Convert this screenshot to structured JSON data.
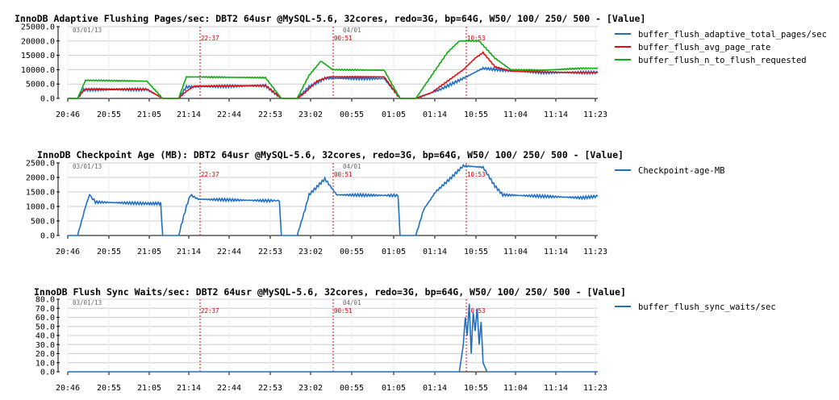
{
  "chart_data": [
    {
      "type": "line",
      "title": "InnoDB Adaptive Flushing Pages/sec: DBT2 64usr @MySQL-5.6, 32cores, redo=3G, bp=64G, W50/ 100/ 250/ 500 - [Value]",
      "ylim": [
        0,
        25000
      ],
      "yticks": [
        "0.0",
        "5000.0",
        "10000.0",
        "15000.0",
        "20000.0",
        "25000.0"
      ],
      "xticks": [
        "20:46",
        "20:55",
        "21:05",
        "21:14",
        "22:44",
        "22:53",
        "23:02",
        "00:55",
        "01:05",
        "01:14",
        "10:55",
        "11:04",
        "11:14",
        "11:23"
      ],
      "date_labels": [
        "03/01/13",
        "04/01"
      ],
      "markers": [
        "22:37",
        "00:51",
        "10:53"
      ],
      "grid": true,
      "legend_position": "right",
      "series": [
        {
          "name": "buffer_flush_adaptive_total_pages/sec",
          "color": "#1f6fc5",
          "points": [
            [
              0,
              0
            ],
            [
              0.25,
              0
            ],
            [
              0.4,
              3000
            ],
            [
              2,
              3100
            ],
            [
              2.4,
              0
            ],
            [
              2.8,
              0
            ],
            [
              3,
              4000
            ],
            [
              5,
              4400
            ],
            [
              5.4,
              0
            ],
            [
              5.8,
              0
            ],
            [
              6.1,
              4000
            ],
            [
              6.5,
              7000
            ],
            [
              8,
              6900
            ],
            [
              8.4,
              0
            ],
            [
              8.8,
              0
            ],
            [
              9.4,
              3000
            ],
            [
              10,
              7000
            ],
            [
              10.5,
              10500
            ],
            [
              11,
              9800
            ],
            [
              12,
              9000
            ],
            [
              13,
              9000
            ],
            [
              13.4,
              9000
            ]
          ]
        },
        {
          "name": "buffer_flush_avg_page_rate",
          "color": "#dd1111",
          "points": [
            [
              0,
              0
            ],
            [
              0.25,
              0
            ],
            [
              0.35,
              2000
            ],
            [
              0.45,
              3200
            ],
            [
              2,
              3200
            ],
            [
              2.4,
              0
            ],
            [
              2.8,
              0
            ],
            [
              3,
              2500
            ],
            [
              3.2,
              4300
            ],
            [
              5,
              4500
            ],
            [
              5.4,
              0
            ],
            [
              5.8,
              0
            ],
            [
              6,
              2000
            ],
            [
              6.3,
              6000
            ],
            [
              6.6,
              7500
            ],
            [
              8,
              7500
            ],
            [
              8.4,
              0
            ],
            [
              8.8,
              0
            ],
            [
              9.2,
              2000
            ],
            [
              9.6,
              6000
            ],
            [
              10,
              10000
            ],
            [
              10.3,
              14000
            ],
            [
              10.5,
              16000
            ],
            [
              10.8,
              11000
            ],
            [
              11.2,
              9500
            ],
            [
              12,
              9200
            ],
            [
              13,
              9000
            ],
            [
              13.4,
              9000
            ]
          ]
        },
        {
          "name": "buffer_flush_n_to_flush_requested",
          "color": "#11aa11",
          "points": [
            [
              0,
              0
            ],
            [
              0.25,
              0
            ],
            [
              0.45,
              6300
            ],
            [
              2,
              6000
            ],
            [
              2.4,
              0
            ],
            [
              2.8,
              0
            ],
            [
              3,
              7500
            ],
            [
              5,
              7200
            ],
            [
              5.4,
              0
            ],
            [
              5.8,
              0
            ],
            [
              6.1,
              8000
            ],
            [
              6.4,
              13000
            ],
            [
              6.7,
              10000
            ],
            [
              8,
              9800
            ],
            [
              8.4,
              0
            ],
            [
              8.8,
              0
            ],
            [
              9.2,
              8000
            ],
            [
              9.6,
              16000
            ],
            [
              9.9,
              20000
            ],
            [
              10.4,
              20000
            ],
            [
              10.8,
              14000
            ],
            [
              11.2,
              10000
            ],
            [
              12,
              9800
            ],
            [
              13,
              10500
            ],
            [
              13.4,
              10500
            ]
          ]
        }
      ]
    },
    {
      "type": "line",
      "title": "InnoDB Checkpoint Age (MB): DBT2 64usr @MySQL-5.6, 32cores, redo=3G, bp=64G, W50/ 100/ 250/ 500 - [Value]",
      "ylim": [
        0,
        2500
      ],
      "yticks": [
        "0.0",
        "500.0",
        "1000.0",
        "1500.0",
        "2000.0",
        "2500.0"
      ],
      "xticks": [
        "20:46",
        "20:55",
        "21:05",
        "21:14",
        "22:44",
        "22:53",
        "23:02",
        "00:55",
        "01:05",
        "01:14",
        "10:55",
        "11:04",
        "11:14",
        "11:23"
      ],
      "date_labels": [
        "03/01/13",
        "04/01"
      ],
      "markers": [
        "22:37",
        "00:51",
        "10:53"
      ],
      "grid": true,
      "legend_position": "right",
      "series": [
        {
          "name": "Checkpoint-age-MB",
          "color": "#1f6fc5",
          "points": [
            [
              0,
              0
            ],
            [
              0.25,
              0
            ],
            [
              0.45,
              1000
            ],
            [
              0.55,
              1400
            ],
            [
              0.7,
              1150
            ],
            [
              2,
              1100
            ],
            [
              2.35,
              1100
            ],
            [
              2.4,
              0
            ],
            [
              2.8,
              0
            ],
            [
              3,
              1000
            ],
            [
              3.1,
              1400
            ],
            [
              3.3,
              1250
            ],
            [
              5,
              1200
            ],
            [
              5.35,
              1200
            ],
            [
              5.4,
              0
            ],
            [
              5.8,
              0
            ],
            [
              6,
              900
            ],
            [
              6.1,
              1400
            ],
            [
              6.5,
              1950
            ],
            [
              6.8,
              1400
            ],
            [
              8,
              1380
            ],
            [
              8.35,
              1380
            ],
            [
              8.4,
              0
            ],
            [
              8.8,
              0
            ],
            [
              9,
              900
            ],
            [
              9.3,
              1500
            ],
            [
              9.7,
              2000
            ],
            [
              10,
              2400
            ],
            [
              10.5,
              2350
            ],
            [
              10.8,
              1700
            ],
            [
              11,
              1400
            ],
            [
              12,
              1350
            ],
            [
              13,
              1300
            ],
            [
              13.4,
              1350
            ]
          ]
        }
      ]
    },
    {
      "type": "line",
      "title": "InnoDB Flush Sync Waits/sec: DBT2 64usr @MySQL-5.6, 32cores, redo=3G, bp=64G, W50/ 100/ 250/ 500 - [Value]",
      "ylim": [
        0,
        80
      ],
      "yticks": [
        "0.0",
        "10.0",
        "20.0",
        "30.0",
        "40.0",
        "50.0",
        "60.0",
        "70.0",
        "80.0"
      ],
      "xticks": [
        "20:46",
        "20:55",
        "21:05",
        "21:14",
        "22:44",
        "22:53",
        "23:02",
        "00:55",
        "01:05",
        "01:14",
        "10:55",
        "11:04",
        "11:14",
        "11:23"
      ],
      "date_labels": [
        "03/01/13",
        "04/01"
      ],
      "markers": [
        "22:37",
        "00:51",
        "10:53"
      ],
      "grid": true,
      "legend_position": "right",
      "series": [
        {
          "name": "buffer_flush_sync_waits/sec",
          "color": "#1f6fc5",
          "points": [
            [
              0,
              0
            ],
            [
              9.9,
              0
            ],
            [
              10.0,
              30
            ],
            [
              10.05,
              60
            ],
            [
              10.1,
              40
            ],
            [
              10.15,
              75
            ],
            [
              10.2,
              20
            ],
            [
              10.25,
              65
            ],
            [
              10.3,
              45
            ],
            [
              10.35,
              70
            ],
            [
              10.4,
              30
            ],
            [
              10.45,
              55
            ],
            [
              10.5,
              10
            ],
            [
              10.6,
              0
            ],
            [
              13.4,
              0
            ]
          ]
        }
      ]
    }
  ]
}
